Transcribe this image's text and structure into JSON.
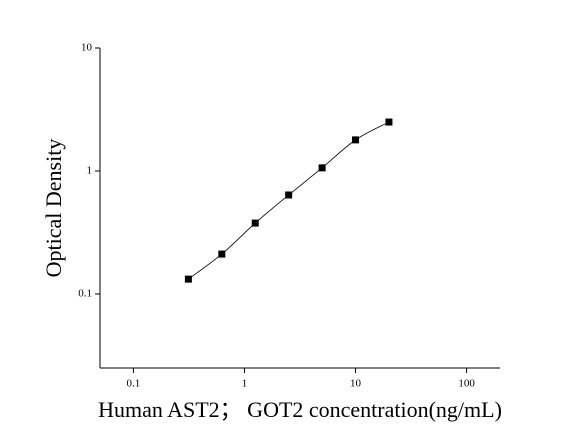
{
  "chart_data": {
    "type": "scatter",
    "x_label": "Human AST2； GOT2 concentration(ng/mL)",
    "y_label": "Optical Density",
    "x": [
      0.3125,
      0.625,
      1.25,
      2.5,
      5,
      10,
      20
    ],
    "series": [
      {
        "color": "#000000",
        "values": [
          0.132,
          0.211,
          0.377,
          0.638,
          1.06,
          1.79,
          2.5
        ]
      }
    ],
    "xlim": [
      0.05,
      200
    ],
    "ylim": [
      0.025,
      10
    ],
    "xticks": [
      0.1,
      1,
      10,
      100
    ],
    "yticks": [
      0.1,
      1,
      10
    ],
    "xscale": "log",
    "yscale": "log",
    "grid": false,
    "fit_curve": true
  }
}
